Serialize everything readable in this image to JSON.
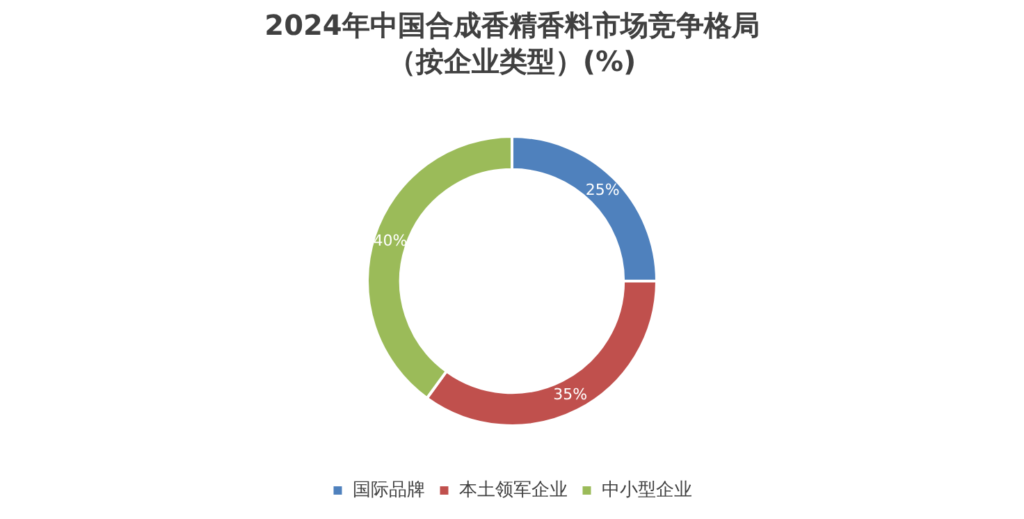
{
  "chart_data": {
    "type": "donut",
    "title": "2024年中国合成香精香料市场竞争格局",
    "subtitle": "（按企业类型）(%)",
    "categories": [
      "国际品牌",
      "本土领军企业",
      "中小型企业"
    ],
    "values": [
      25,
      35,
      40
    ],
    "value_labels": [
      "25%",
      "35%",
      "40%"
    ],
    "colors": [
      "#4f81bd",
      "#c0504d",
      "#9bbb59"
    ],
    "legend": "bottom"
  }
}
